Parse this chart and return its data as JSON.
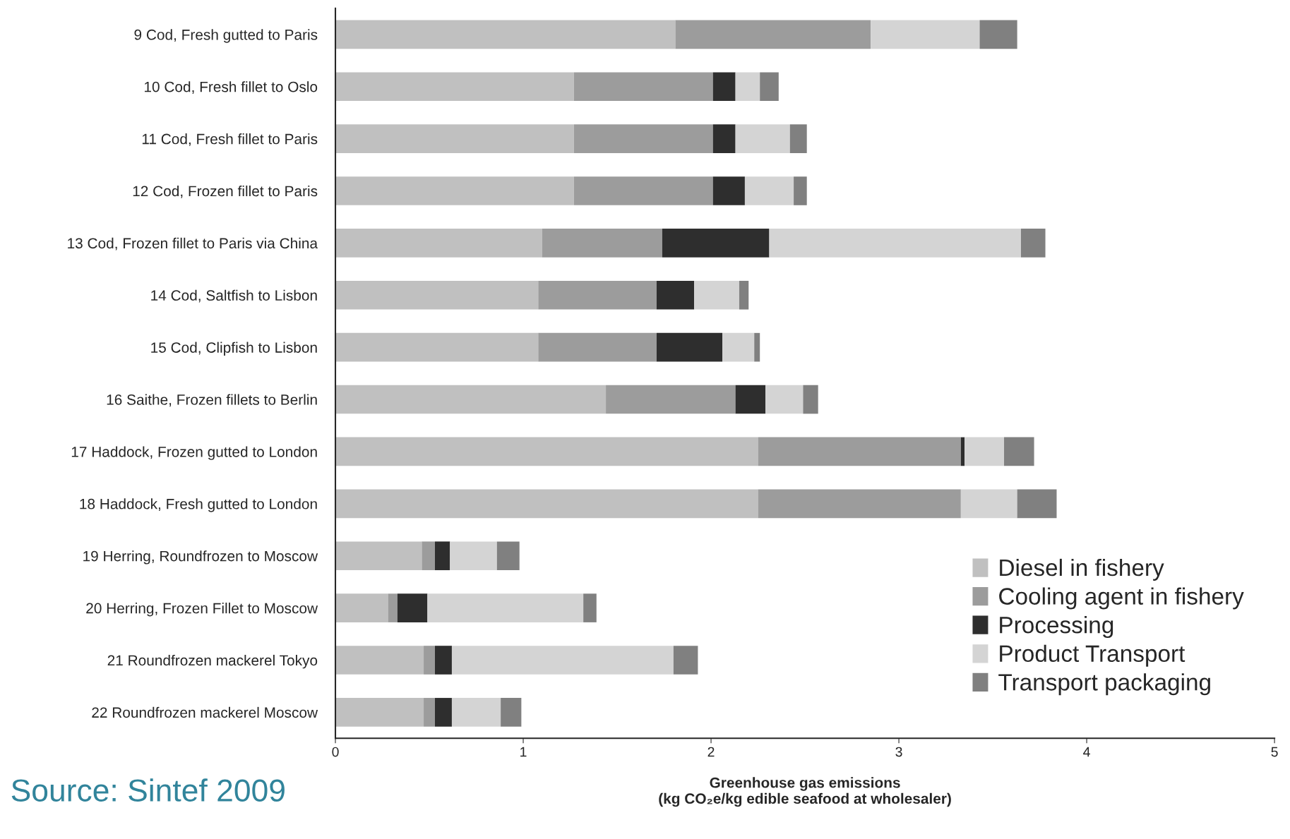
{
  "chart_data": {
    "type": "bar",
    "orientation": "horizontal",
    "stacked": true,
    "categories": [
      "9 Cod, Fresh gutted to Paris",
      "10 Cod, Fresh fillet to Oslo",
      "11 Cod, Fresh fillet to Paris",
      "12 Cod, Frozen fillet to Paris",
      "13 Cod, Frozen fillet to Paris via China",
      "14 Cod, Saltfish to Lisbon",
      "15 Cod, Clipfish to Lisbon",
      "16 Saithe, Frozen fillets to Berlin",
      "17 Haddock, Frozen gutted to London",
      "18 Haddock, Fresh gutted to London",
      "19 Herring, Roundfrozen to Moscow",
      "20 Herring, Frozen Fillet to Moscow",
      "21 Roundfrozen mackerel Tokyo",
      "22 Roundfrozen mackerel Moscow"
    ],
    "series": [
      {
        "name": "Diesel in fishery",
        "color": "#c0c0c0",
        "values": [
          1.81,
          1.27,
          1.27,
          1.27,
          1.1,
          1.08,
          1.08,
          1.44,
          2.25,
          2.25,
          0.46,
          0.28,
          0.47,
          0.47
        ]
      },
      {
        "name": "Cooling agent in fishery",
        "color": "#9c9c9c",
        "values": [
          1.04,
          0.74,
          0.74,
          0.74,
          0.64,
          0.63,
          0.63,
          0.69,
          1.08,
          1.08,
          0.07,
          0.05,
          0.06,
          0.06
        ]
      },
      {
        "name": "Processing",
        "color": "#2e2e2e",
        "values": [
          0,
          0.12,
          0.12,
          0.17,
          0.57,
          0.2,
          0.35,
          0.16,
          0.02,
          0,
          0.08,
          0.16,
          0.09,
          0.09
        ]
      },
      {
        "name": "Product Transport",
        "color": "#d4d4d4",
        "values": [
          0.58,
          0.13,
          0.29,
          0.26,
          1.34,
          0.24,
          0.17,
          0.2,
          0.21,
          0.3,
          0.25,
          0.83,
          1.18,
          0.26
        ]
      },
      {
        "name": "Transport packaging",
        "color": "#808080",
        "values": [
          0.2,
          0.1,
          0.09,
          0.07,
          0.13,
          0.05,
          0.03,
          0.08,
          0.16,
          0.21,
          0.12,
          0.07,
          0.13,
          0.11
        ]
      }
    ],
    "xlim": [
      0,
      5
    ],
    "xticks": [
      0,
      1,
      2,
      3,
      4,
      5
    ],
    "xlabel": "Greenhouse gas emissions\n(kg CO₂e/kg edible seafood at wholesaler)",
    "legend": "bottom right",
    "grid": false,
    "annotations": [
      "Source: Sintef 2009"
    ]
  }
}
